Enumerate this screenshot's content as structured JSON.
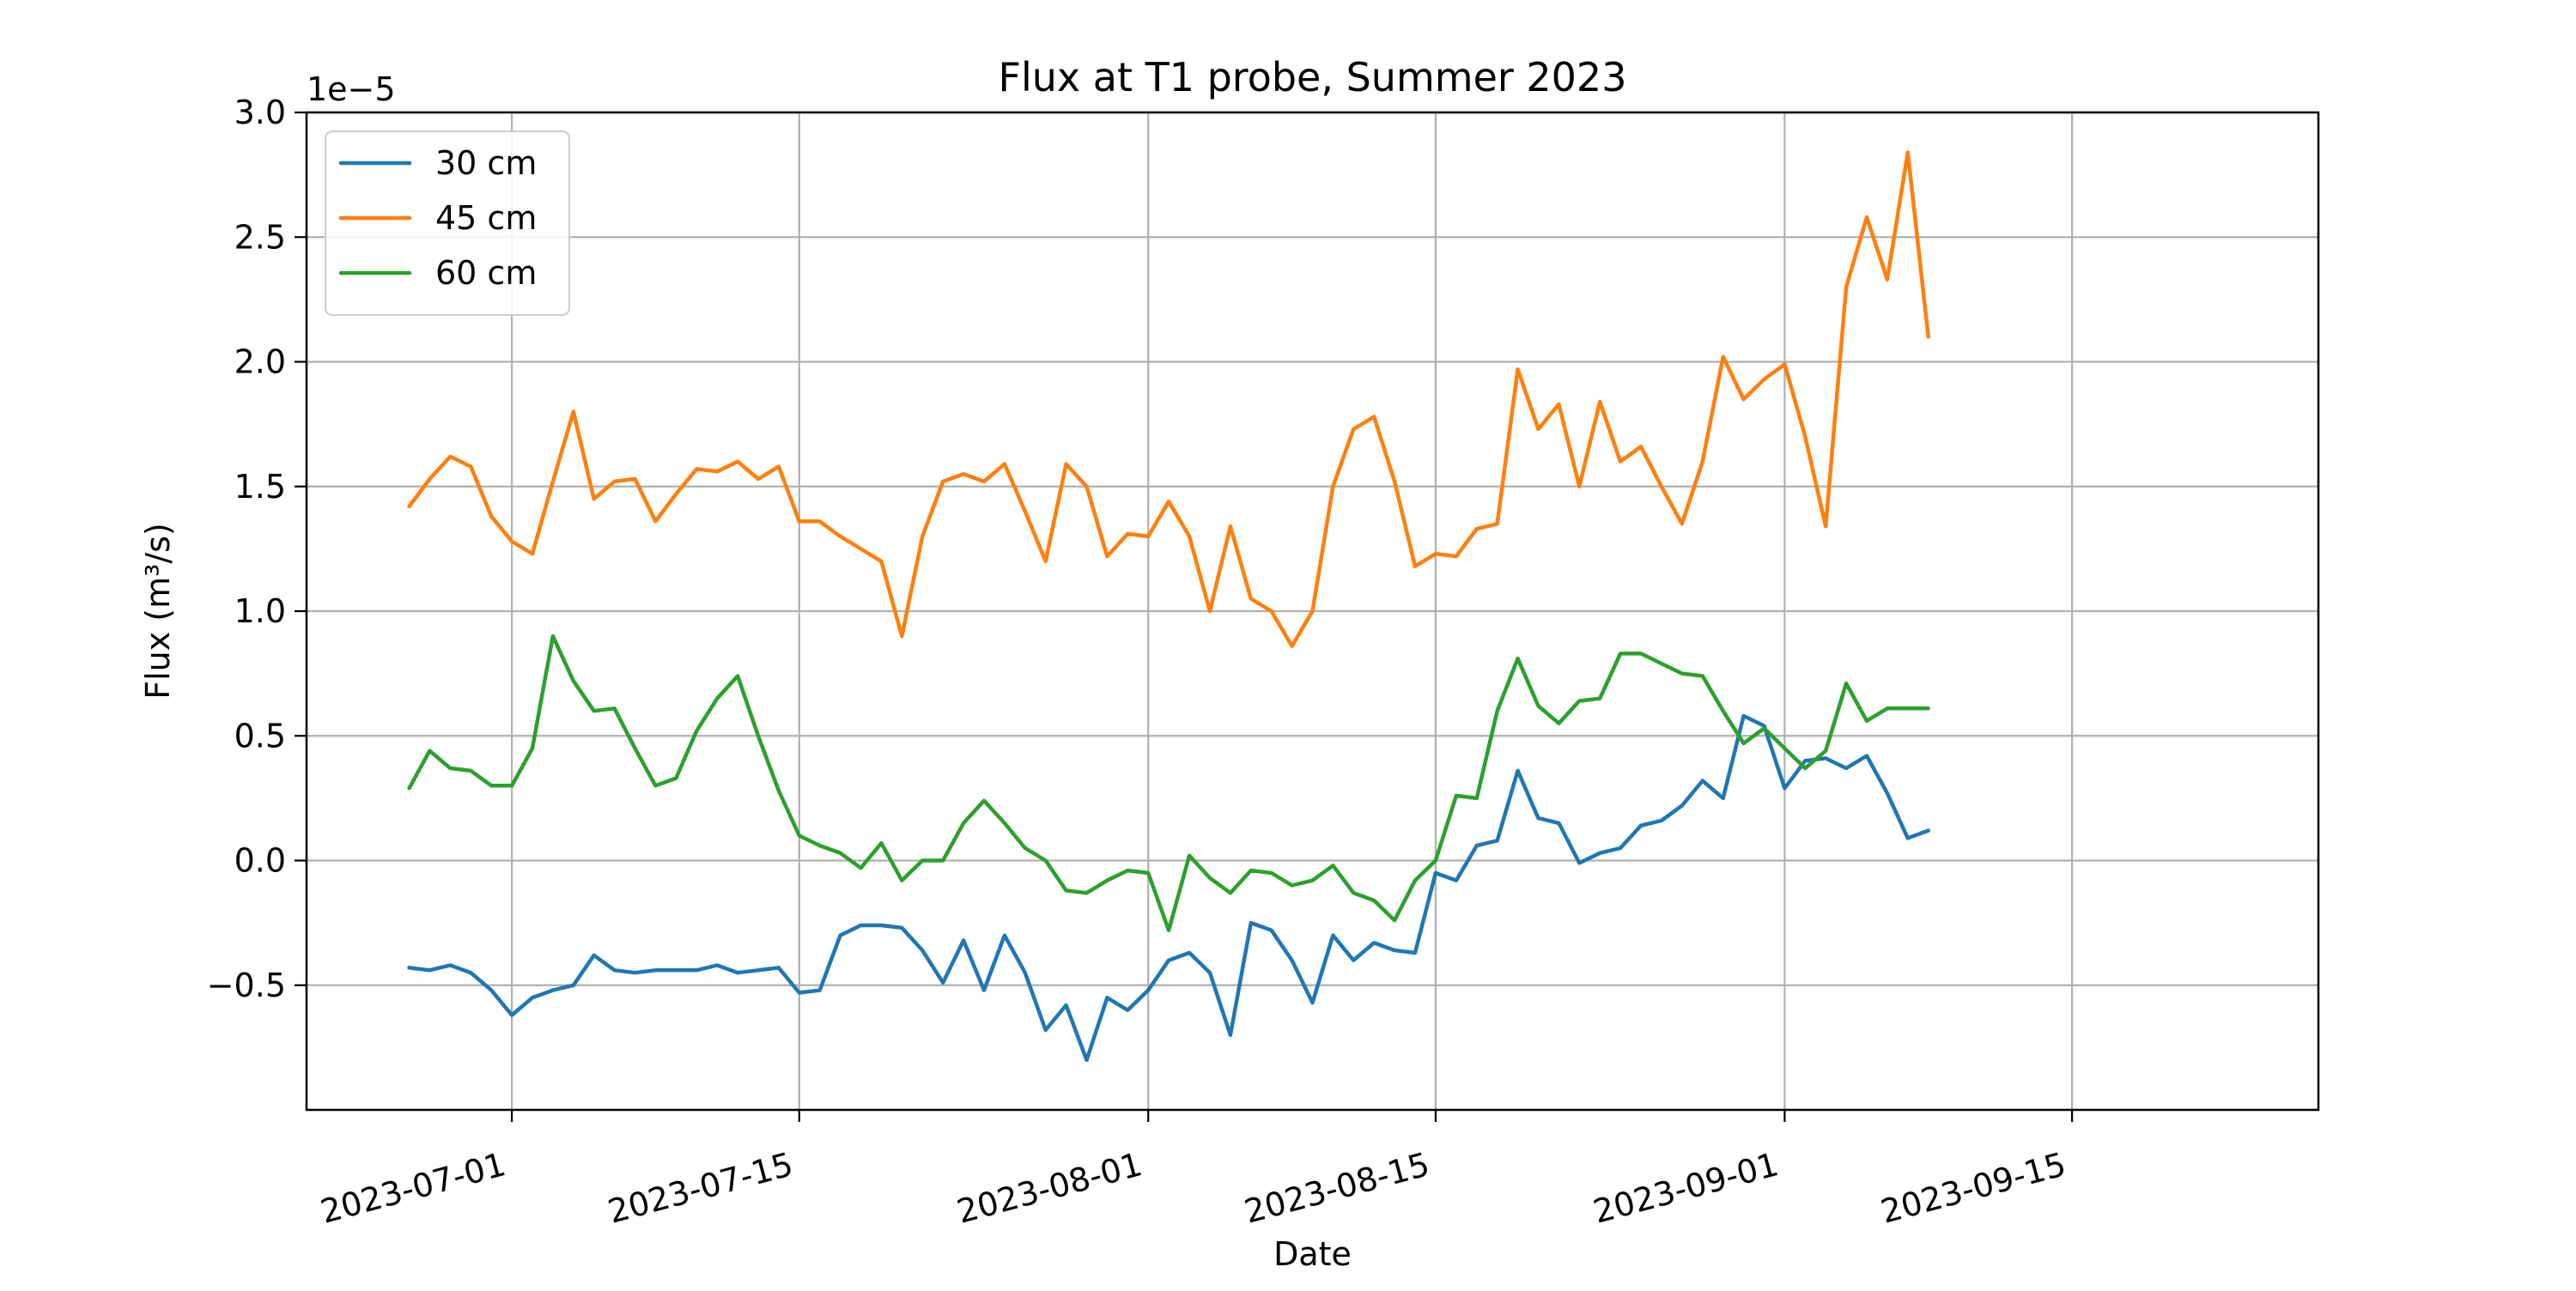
{
  "chart_data": {
    "type": "line",
    "title": "Flux at T1 probe, Summer 2023",
    "xlabel": "Date",
    "ylabel": "Flux (m³/s)",
    "y_offset_label": "1e−5",
    "y_scale_factor": 1e-05,
    "x_type": "date",
    "xlim": [
      "2023-06-21",
      "2023-09-27"
    ],
    "ylim": [
      -1.0,
      3.0
    ],
    "x_ticks": [
      "2023-07-01",
      "2023-07-15",
      "2023-08-01",
      "2023-08-15",
      "2023-09-01",
      "2023-09-15"
    ],
    "y_ticks": [
      -0.5,
      0.0,
      0.5,
      1.0,
      1.5,
      2.0,
      2.5,
      3.0
    ],
    "y_tick_labels": [
      "−0.5",
      "0.0",
      "0.5",
      "1.0",
      "1.5",
      "2.0",
      "2.5",
      "3.0"
    ],
    "grid": true,
    "legend_position": "top-left",
    "colors": {
      "30 cm": "#1f77b4",
      "45 cm": "#ff7f0e",
      "60 cm": "#2ca02c"
    },
    "series": [
      {
        "name": "30 cm",
        "color": "#1f77b4",
        "points": [
          [
            "2023-06-26",
            -0.43
          ],
          [
            "2023-06-27",
            -0.44
          ],
          [
            "2023-06-28",
            -0.42
          ],
          [
            "2023-06-29",
            -0.45
          ],
          [
            "2023-06-30",
            -0.52
          ],
          [
            "2023-07-01",
            -0.62
          ],
          [
            "2023-07-02",
            -0.55
          ],
          [
            "2023-07-03",
            -0.52
          ],
          [
            "2023-07-04",
            -0.5
          ],
          [
            "2023-07-05",
            -0.38
          ],
          [
            "2023-07-06",
            -0.44
          ],
          [
            "2023-07-07",
            -0.45
          ],
          [
            "2023-07-08",
            -0.44
          ],
          [
            "2023-07-09",
            -0.44
          ],
          [
            "2023-07-10",
            -0.44
          ],
          [
            "2023-07-11",
            -0.42
          ],
          [
            "2023-07-12",
            -0.45
          ],
          [
            "2023-07-13",
            -0.44
          ],
          [
            "2023-07-14",
            -0.43
          ],
          [
            "2023-07-15",
            -0.53
          ],
          [
            "2023-07-16",
            -0.52
          ],
          [
            "2023-07-17",
            -0.3
          ],
          [
            "2023-07-18",
            -0.26
          ],
          [
            "2023-07-19",
            -0.26
          ],
          [
            "2023-07-20",
            -0.27
          ],
          [
            "2023-07-21",
            -0.36
          ],
          [
            "2023-07-22",
            -0.49
          ],
          [
            "2023-07-23",
            -0.32
          ],
          [
            "2023-07-24",
            -0.52
          ],
          [
            "2023-07-25",
            -0.3
          ],
          [
            "2023-07-26",
            -0.45
          ],
          [
            "2023-07-27",
            -0.68
          ],
          [
            "2023-07-28",
            -0.58
          ],
          [
            "2023-07-29",
            -0.8
          ],
          [
            "2023-07-30",
            -0.55
          ],
          [
            "2023-07-31",
            -0.6
          ],
          [
            "2023-08-01",
            -0.52
          ],
          [
            "2023-08-02",
            -0.4
          ],
          [
            "2023-08-03",
            -0.37
          ],
          [
            "2023-08-04",
            -0.45
          ],
          [
            "2023-08-05",
            -0.7
          ],
          [
            "2023-08-06",
            -0.25
          ],
          [
            "2023-08-07",
            -0.28
          ],
          [
            "2023-08-08",
            -0.4
          ],
          [
            "2023-08-09",
            -0.57
          ],
          [
            "2023-08-10",
            -0.3
          ],
          [
            "2023-08-11",
            -0.4
          ],
          [
            "2023-08-12",
            -0.33
          ],
          [
            "2023-08-13",
            -0.36
          ],
          [
            "2023-08-14",
            -0.37
          ],
          [
            "2023-08-15",
            -0.05
          ],
          [
            "2023-08-16",
            -0.08
          ],
          [
            "2023-08-17",
            0.06
          ],
          [
            "2023-08-18",
            0.08
          ],
          [
            "2023-08-19",
            0.36
          ],
          [
            "2023-08-20",
            0.17
          ],
          [
            "2023-08-21",
            0.15
          ],
          [
            "2023-08-22",
            -0.01
          ],
          [
            "2023-08-23",
            0.03
          ],
          [
            "2023-08-24",
            0.05
          ],
          [
            "2023-08-25",
            0.14
          ],
          [
            "2023-08-26",
            0.16
          ],
          [
            "2023-08-27",
            0.22
          ],
          [
            "2023-08-28",
            0.32
          ],
          [
            "2023-08-29",
            0.25
          ],
          [
            "2023-08-30",
            0.58
          ],
          [
            "2023-08-31",
            0.54
          ],
          [
            "2023-09-01",
            0.29
          ],
          [
            "2023-09-02",
            0.4
          ],
          [
            "2023-09-03",
            0.41
          ],
          [
            "2023-09-04",
            0.37
          ],
          [
            "2023-09-05",
            0.42
          ],
          [
            "2023-09-06",
            0.27
          ],
          [
            "2023-09-07",
            0.09
          ],
          [
            "2023-09-08",
            0.12
          ]
        ]
      },
      {
        "name": "45 cm",
        "color": "#ff7f0e",
        "points": [
          [
            "2023-06-26",
            1.42
          ],
          [
            "2023-06-27",
            1.53
          ],
          [
            "2023-06-28",
            1.62
          ],
          [
            "2023-06-29",
            1.58
          ],
          [
            "2023-06-30",
            1.38
          ],
          [
            "2023-07-01",
            1.28
          ],
          [
            "2023-07-02",
            1.23
          ],
          [
            "2023-07-03",
            1.52
          ],
          [
            "2023-07-04",
            1.8
          ],
          [
            "2023-07-05",
            1.45
          ],
          [
            "2023-07-06",
            1.52
          ],
          [
            "2023-07-07",
            1.53
          ],
          [
            "2023-07-08",
            1.36
          ],
          [
            "2023-07-09",
            1.47
          ],
          [
            "2023-07-10",
            1.57
          ],
          [
            "2023-07-11",
            1.56
          ],
          [
            "2023-07-12",
            1.6
          ],
          [
            "2023-07-13",
            1.53
          ],
          [
            "2023-07-14",
            1.58
          ],
          [
            "2023-07-15",
            1.36
          ],
          [
            "2023-07-16",
            1.36
          ],
          [
            "2023-07-17",
            1.3
          ],
          [
            "2023-07-18",
            1.25
          ],
          [
            "2023-07-19",
            1.2
          ],
          [
            "2023-07-20",
            0.9
          ],
          [
            "2023-07-21",
            1.3
          ],
          [
            "2023-07-22",
            1.52
          ],
          [
            "2023-07-23",
            1.55
          ],
          [
            "2023-07-24",
            1.52
          ],
          [
            "2023-07-25",
            1.59
          ],
          [
            "2023-07-26",
            1.4
          ],
          [
            "2023-07-27",
            1.2
          ],
          [
            "2023-07-28",
            1.59
          ],
          [
            "2023-07-29",
            1.5
          ],
          [
            "2023-07-30",
            1.22
          ],
          [
            "2023-07-31",
            1.31
          ],
          [
            "2023-08-01",
            1.3
          ],
          [
            "2023-08-02",
            1.44
          ],
          [
            "2023-08-03",
            1.3
          ],
          [
            "2023-08-04",
            1.0
          ],
          [
            "2023-08-05",
            1.34
          ],
          [
            "2023-08-06",
            1.05
          ],
          [
            "2023-08-07",
            1.0
          ],
          [
            "2023-08-08",
            0.86
          ],
          [
            "2023-08-09",
            1.0
          ],
          [
            "2023-08-10",
            1.5
          ],
          [
            "2023-08-11",
            1.73
          ],
          [
            "2023-08-12",
            1.78
          ],
          [
            "2023-08-13",
            1.52
          ],
          [
            "2023-08-14",
            1.18
          ],
          [
            "2023-08-15",
            1.23
          ],
          [
            "2023-08-16",
            1.22
          ],
          [
            "2023-08-17",
            1.33
          ],
          [
            "2023-08-18",
            1.35
          ],
          [
            "2023-08-19",
            1.97
          ],
          [
            "2023-08-20",
            1.73
          ],
          [
            "2023-08-21",
            1.83
          ],
          [
            "2023-08-22",
            1.5
          ],
          [
            "2023-08-23",
            1.84
          ],
          [
            "2023-08-24",
            1.6
          ],
          [
            "2023-08-25",
            1.66
          ],
          [
            "2023-08-26",
            1.5
          ],
          [
            "2023-08-27",
            1.35
          ],
          [
            "2023-08-28",
            1.6
          ],
          [
            "2023-08-29",
            2.02
          ],
          [
            "2023-08-30",
            1.85
          ],
          [
            "2023-08-31",
            1.93
          ],
          [
            "2023-09-01",
            1.99
          ],
          [
            "2023-09-02",
            1.7
          ],
          [
            "2023-09-03",
            1.34
          ],
          [
            "2023-09-04",
            2.3
          ],
          [
            "2023-09-05",
            2.58
          ],
          [
            "2023-09-06",
            2.33
          ],
          [
            "2023-09-07",
            2.84
          ],
          [
            "2023-09-08",
            2.1
          ]
        ]
      },
      {
        "name": "60 cm",
        "color": "#2ca02c",
        "points": [
          [
            "2023-06-26",
            0.29
          ],
          [
            "2023-06-27",
            0.44
          ],
          [
            "2023-06-28",
            0.37
          ],
          [
            "2023-06-29",
            0.36
          ],
          [
            "2023-06-30",
            0.3
          ],
          [
            "2023-07-01",
            0.3
          ],
          [
            "2023-07-02",
            0.45
          ],
          [
            "2023-07-03",
            0.9
          ],
          [
            "2023-07-04",
            0.72
          ],
          [
            "2023-07-05",
            0.6
          ],
          [
            "2023-07-06",
            0.61
          ],
          [
            "2023-07-07",
            0.45
          ],
          [
            "2023-07-08",
            0.3
          ],
          [
            "2023-07-09",
            0.33
          ],
          [
            "2023-07-10",
            0.52
          ],
          [
            "2023-07-11",
            0.65
          ],
          [
            "2023-07-12",
            0.74
          ],
          [
            "2023-07-13",
            0.5
          ],
          [
            "2023-07-14",
            0.28
          ],
          [
            "2023-07-15",
            0.1
          ],
          [
            "2023-07-16",
            0.06
          ],
          [
            "2023-07-17",
            0.03
          ],
          [
            "2023-07-18",
            -0.03
          ],
          [
            "2023-07-19",
            0.07
          ],
          [
            "2023-07-20",
            -0.08
          ],
          [
            "2023-07-21",
            0.0
          ],
          [
            "2023-07-22",
            0.0
          ],
          [
            "2023-07-23",
            0.15
          ],
          [
            "2023-07-24",
            0.24
          ],
          [
            "2023-07-25",
            0.15
          ],
          [
            "2023-07-26",
            0.05
          ],
          [
            "2023-07-27",
            0.0
          ],
          [
            "2023-07-28",
            -0.12
          ],
          [
            "2023-07-29",
            -0.13
          ],
          [
            "2023-07-30",
            -0.08
          ],
          [
            "2023-07-31",
            -0.04
          ],
          [
            "2023-08-01",
            -0.05
          ],
          [
            "2023-08-02",
            -0.28
          ],
          [
            "2023-08-03",
            0.02
          ],
          [
            "2023-08-04",
            -0.07
          ],
          [
            "2023-08-05",
            -0.13
          ],
          [
            "2023-08-06",
            -0.04
          ],
          [
            "2023-08-07",
            -0.05
          ],
          [
            "2023-08-08",
            -0.1
          ],
          [
            "2023-08-09",
            -0.08
          ],
          [
            "2023-08-10",
            -0.02
          ],
          [
            "2023-08-11",
            -0.13
          ],
          [
            "2023-08-12",
            -0.16
          ],
          [
            "2023-08-13",
            -0.24
          ],
          [
            "2023-08-14",
            -0.08
          ],
          [
            "2023-08-15",
            0.0
          ],
          [
            "2023-08-16",
            0.26
          ],
          [
            "2023-08-17",
            0.25
          ],
          [
            "2023-08-18",
            0.6
          ],
          [
            "2023-08-19",
            0.81
          ],
          [
            "2023-08-20",
            0.62
          ],
          [
            "2023-08-21",
            0.55
          ],
          [
            "2023-08-22",
            0.64
          ],
          [
            "2023-08-23",
            0.65
          ],
          [
            "2023-08-24",
            0.83
          ],
          [
            "2023-08-25",
            0.83
          ],
          [
            "2023-08-26",
            0.79
          ],
          [
            "2023-08-27",
            0.75
          ],
          [
            "2023-08-28",
            0.74
          ],
          [
            "2023-08-29",
            0.6
          ],
          [
            "2023-08-30",
            0.47
          ],
          [
            "2023-08-31",
            0.53
          ],
          [
            "2023-09-01",
            0.45
          ],
          [
            "2023-09-02",
            0.37
          ],
          [
            "2023-09-03",
            0.44
          ],
          [
            "2023-09-04",
            0.71
          ],
          [
            "2023-09-05",
            0.56
          ],
          [
            "2023-09-06",
            0.61
          ],
          [
            "2023-09-07",
            0.61
          ],
          [
            "2023-09-08",
            0.61
          ]
        ]
      }
    ]
  }
}
